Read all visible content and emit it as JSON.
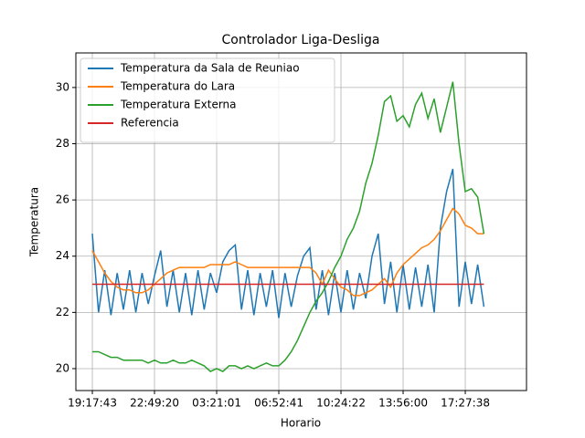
{
  "chart_data": {
    "type": "line",
    "title": "Controlador Liga-Desliga",
    "xlabel": "Horario",
    "ylabel": "Temperatura",
    "x": [
      0,
      20,
      40,
      60,
      80,
      100,
      120,
      140,
      160,
      180,
      200,
      220,
      240,
      260,
      280,
      300,
      320,
      340,
      360,
      380,
      400,
      420,
      440,
      460,
      480,
      500,
      520,
      540,
      560,
      580,
      600,
      620,
      640,
      660,
      680,
      700,
      720,
      740,
      760,
      780,
      800,
      820,
      840,
      860,
      880,
      900,
      920,
      940,
      960,
      980,
      1000,
      1020,
      1040,
      1060,
      1080,
      1100,
      1120,
      1140,
      1160,
      1180,
      1200,
      1220,
      1240,
      1260
    ],
    "xlim": [
      -53,
      1397
    ],
    "xticks": [
      {
        "value": 0,
        "label": "19:17:43"
      },
      {
        "value": 200,
        "label": "22:49:20"
      },
      {
        "value": 400,
        "label": "03:21:01"
      },
      {
        "value": 600,
        "label": "06:52:41"
      },
      {
        "value": 800,
        "label": "10:24:22"
      },
      {
        "value": 1000,
        "label": "13:56:00"
      },
      {
        "value": 1200,
        "label": "17:27:38"
      }
    ],
    "ylim": [
      19.22,
      31.23
    ],
    "yticks": [
      20,
      22,
      24,
      26,
      28,
      30
    ],
    "grid": true,
    "legend": "upper left",
    "series": [
      {
        "name": "Temperatura da Sala de Reuniao",
        "color": "#1f77b4",
        "values": [
          24.8,
          22.0,
          23.5,
          21.9,
          23.4,
          22.1,
          23.5,
          22.0,
          23.4,
          22.3,
          23.3,
          24.2,
          22.2,
          23.5,
          22.0,
          23.4,
          21.9,
          23.5,
          22.1,
          23.4,
          22.7,
          23.8,
          24.2,
          24.4,
          22.1,
          23.5,
          21.9,
          23.4,
          22.2,
          23.5,
          21.8,
          23.4,
          22.2,
          23.3,
          24.0,
          24.3,
          22.1,
          23.5,
          21.9,
          23.4,
          22.0,
          23.5,
          22.1,
          23.4,
          22.5,
          24.0,
          24.8,
          22.3,
          23.8,
          22.0,
          23.7,
          22.1,
          23.6,
          22.2,
          23.7,
          22.0,
          25.0,
          26.3,
          27.1,
          22.2,
          23.8,
          22.3,
          23.7,
          22.2
        ]
      },
      {
        "name": "Temperatura do Lara",
        "color": "#ff7f0e",
        "values": [
          24.2,
          23.8,
          23.4,
          23.1,
          22.9,
          22.8,
          22.8,
          22.7,
          22.7,
          22.8,
          23.0,
          23.2,
          23.4,
          23.5,
          23.6,
          23.6,
          23.6,
          23.6,
          23.6,
          23.7,
          23.7,
          23.7,
          23.7,
          23.8,
          23.7,
          23.6,
          23.6,
          23.6,
          23.6,
          23.6,
          23.6,
          23.6,
          23.6,
          23.6,
          23.6,
          23.6,
          23.4,
          23.0,
          23.5,
          23.2,
          22.9,
          22.8,
          22.6,
          22.6,
          22.7,
          22.8,
          23.0,
          23.2,
          22.9,
          23.4,
          23.7,
          23.9,
          24.1,
          24.3,
          24.4,
          24.6,
          24.9,
          25.3,
          25.7,
          25.5,
          25.1,
          25.0,
          24.8,
          24.8
        ]
      },
      {
        "name": "Temperatura Externa",
        "color": "#2ca02c",
        "values": [
          20.6,
          20.6,
          20.5,
          20.4,
          20.4,
          20.3,
          20.3,
          20.3,
          20.3,
          20.2,
          20.3,
          20.2,
          20.2,
          20.3,
          20.2,
          20.2,
          20.3,
          20.2,
          20.1,
          19.9,
          20.0,
          19.9,
          20.1,
          20.1,
          20.0,
          20.1,
          20.0,
          20.1,
          20.2,
          20.1,
          20.1,
          20.3,
          20.6,
          21.0,
          21.5,
          22.0,
          22.4,
          22.7,
          23.1,
          23.6,
          24.0,
          24.6,
          25.0,
          25.6,
          26.6,
          27.3,
          28.3,
          29.5,
          29.7,
          28.8,
          29.0,
          28.6,
          29.4,
          29.8,
          28.9,
          29.6,
          28.4,
          29.3,
          30.2,
          28.0,
          26.3,
          26.4,
          26.1,
          24.8
        ]
      },
      {
        "name": "Referencia",
        "color": "#d62728",
        "values": [
          23,
          23,
          23,
          23,
          23,
          23,
          23,
          23,
          23,
          23,
          23,
          23,
          23,
          23,
          23,
          23,
          23,
          23,
          23,
          23,
          23,
          23,
          23,
          23,
          23,
          23,
          23,
          23,
          23,
          23,
          23,
          23,
          23,
          23,
          23,
          23,
          23,
          23,
          23,
          23,
          23,
          23,
          23,
          23,
          23,
          23,
          23,
          23,
          23,
          23,
          23,
          23,
          23,
          23,
          23,
          23,
          23,
          23,
          23,
          23,
          23,
          23,
          23,
          23
        ]
      }
    ]
  }
}
